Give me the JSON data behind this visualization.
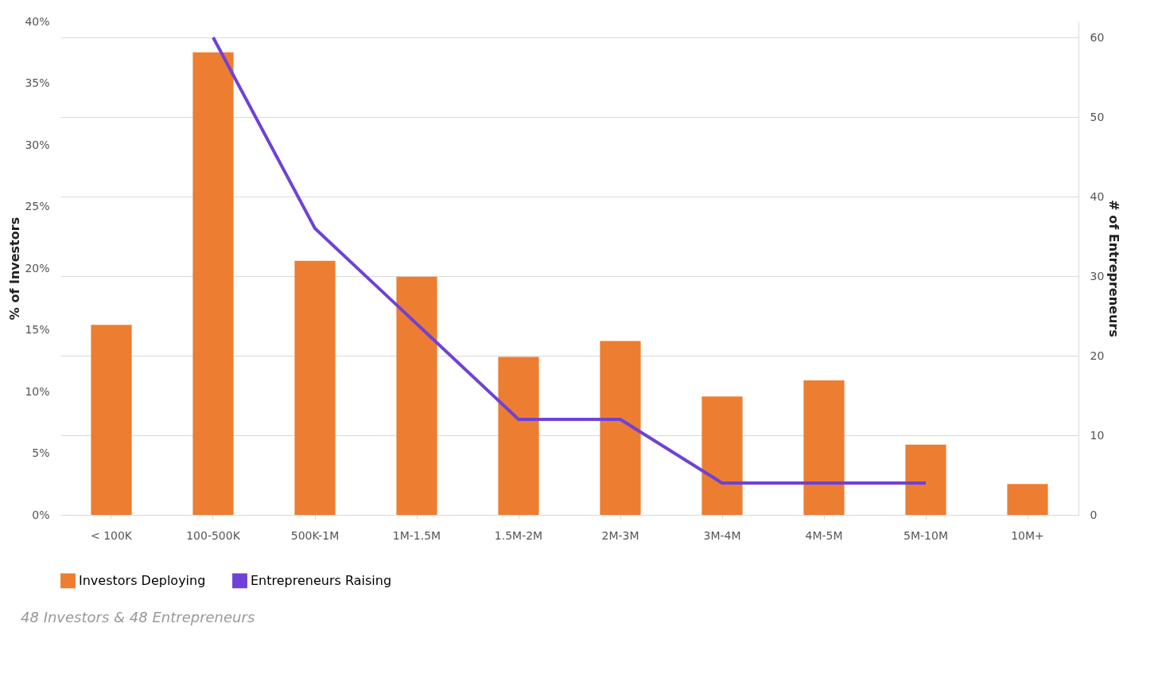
{
  "chart_data": {
    "type": "bar",
    "ylabel": "% of Investors",
    "y2label": "# of Entrepreneurs",
    "categories": [
      "< 100K",
      "100-500K",
      "500K-1M",
      "1M-1.5M",
      "1.5M-2M",
      "2M-3M",
      "3M-4M",
      "4M-5M",
      "5M-10M",
      "10M+"
    ],
    "series": [
      {
        "name": "Investors Deploying",
        "color": "#ed7d31",
        "values": [
          15.4,
          37.5,
          20.6,
          19.3,
          12.8,
          14.1,
          9.6,
          10.9,
          5.7,
          2.5
        ]
      },
      {
        "name": "Entrepreneurs Raising",
        "type": "line",
        "axis": "y2",
        "color": "#6f42d6",
        "values": [
          null,
          60,
          36,
          24,
          12,
          12,
          4,
          4,
          4,
          null
        ]
      }
    ],
    "ylim": [
      0,
      40
    ],
    "yticks": [
      {
        "value": 0,
        "label": "0%"
      },
      {
        "value": 5,
        "label": "5%"
      },
      {
        "value": 10,
        "label": "10%"
      },
      {
        "value": 15,
        "label": "15%"
      },
      {
        "value": 20,
        "label": "20%"
      },
      {
        "value": 25,
        "label": "25%"
      },
      {
        "value": 30,
        "label": "30%"
      },
      {
        "value": 35,
        "label": "35%"
      },
      {
        "value": 40,
        "label": "40%"
      }
    ],
    "y2lim": [
      0,
      62
    ],
    "y2ticks": [
      0,
      10,
      20,
      30,
      40,
      50,
      60
    ],
    "grid": true,
    "legend": "bottom",
    "line_style": "solid",
    "annotations": [
      "48 Investors & 48 Entrepreneurs"
    ]
  }
}
